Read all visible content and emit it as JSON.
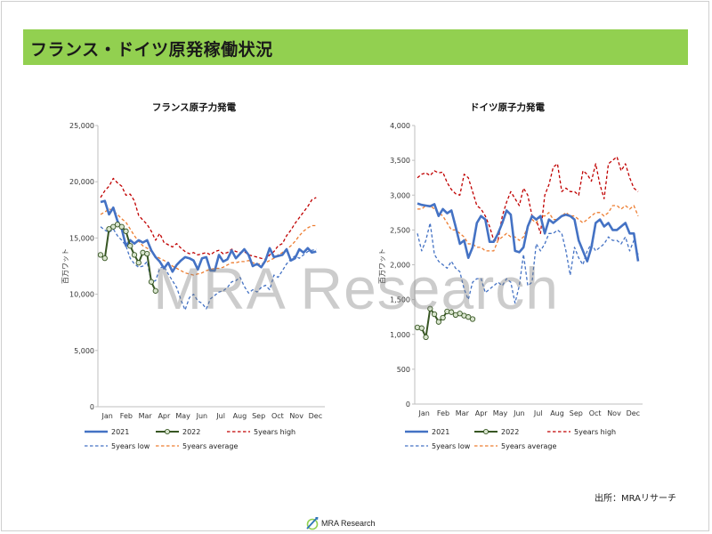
{
  "slide": {
    "title": "フランス・ドイツ原発稼働状況",
    "source": "出所：MRAリサーチ",
    "watermark": "MRA Research",
    "footer": "MRA Research",
    "colors": {
      "banner": "#92d050",
      "s2021": "#4472c4",
      "s2022": "#375623",
      "s2022_marker": "#d9e5cf",
      "high": "#c00000",
      "low": "#4472c4",
      "avg": "#ed7d31"
    }
  },
  "chart_data": [
    {
      "type": "line",
      "title": "フランス原子力発電",
      "ylabel": "百万ワット",
      "xlabel": "",
      "ylim": [
        0,
        25000
      ],
      "yticks": [
        0,
        5000,
        10000,
        15000,
        20000,
        25000
      ],
      "ytick_labels": [
        "0",
        "5,000",
        "10,000",
        "15,000",
        "20,000",
        "25,000"
      ],
      "month_labels": [
        "Jan",
        "Feb",
        "Mar",
        "Apr",
        "May",
        "Jun",
        "Jul",
        "Aug",
        "Sep",
        "Oct",
        "Nov",
        "Dec"
      ],
      "x_unit": "week",
      "grid": false,
      "legend_position": "bottom",
      "series": [
        {
          "name": "2021",
          "style": "solid-thick",
          "color": "#4472c4",
          "values": [
            18200,
            18300,
            17100,
            17700,
            16500,
            15800,
            14300,
            14800,
            14500,
            14800,
            14600,
            14800,
            13900,
            13300,
            12900,
            12300,
            12800,
            12000,
            12600,
            13000,
            13300,
            13200,
            13000,
            12200,
            13200,
            13300,
            12100,
            12100,
            13500,
            12900,
            13100,
            13900,
            13200,
            13600,
            14000,
            13500,
            12500,
            12700,
            12400,
            13000,
            14100,
            13300,
            13400,
            13500,
            14000,
            13000,
            13200,
            14000,
            13700,
            14100,
            13700,
            13800
          ]
        },
        {
          "name": "2022",
          "style": "solid-marker",
          "color": "#375623",
          "values": [
            13500,
            13200,
            15800,
            16000,
            16200,
            16000,
            15600,
            14300,
            13500,
            12800,
            13700,
            13600,
            11100,
            10300
          ]
        },
        {
          "name": "5years high",
          "style": "dash",
          "color": "#c00000",
          "values": [
            18600,
            19200,
            19600,
            20300,
            19900,
            19600,
            18800,
            18900,
            18300,
            17000,
            16600,
            16200,
            15600,
            14800,
            15400,
            14600,
            14400,
            14200,
            14500,
            14100,
            13800,
            13600,
            13700,
            13500,
            13600,
            13700,
            13500,
            13800,
            13900,
            13600,
            13700,
            14000,
            13800,
            13700,
            13800,
            13500,
            13400,
            13300,
            13200,
            13100,
            13500,
            13800,
            14300,
            14500,
            15200,
            15700,
            16300,
            16800,
            17300,
            17800,
            18400,
            18600
          ]
        },
        {
          "name": "5years low",
          "style": "dash",
          "color": "#4472c4",
          "values": [
            16000,
            15700,
            15500,
            15800,
            15200,
            14800,
            14300,
            13200,
            12700,
            12400,
            12500,
            12900,
            11100,
            11200,
            12300,
            12500,
            11800,
            11200,
            10600,
            9500,
            8600,
            9700,
            10000,
            9400,
            9200,
            8700,
            9600,
            9900,
            10200,
            10300,
            10600,
            11100,
            11200,
            11500,
            10700,
            10100,
            10400,
            10200,
            10600,
            10800,
            10400,
            11700,
            11500,
            12100,
            12700,
            13100,
            13400,
            13200,
            13500,
            13800,
            13900,
            14000
          ]
        },
        {
          "name": "5years average",
          "style": "dash",
          "color": "#ed7d31",
          "values": [
            17100,
            17300,
            17600,
            17400,
            17100,
            16700,
            16400,
            15800,
            15200,
            14700,
            14300,
            14100,
            13800,
            13400,
            13200,
            13000,
            12800,
            12500,
            12300,
            12100,
            11900,
            11800,
            11700,
            11800,
            11900,
            12100,
            12200,
            12300,
            12300,
            12400,
            12600,
            12800,
            12800,
            12900,
            12900,
            13000,
            12800,
            12700,
            12700,
            12800,
            13000,
            13200,
            13500,
            13700,
            14000,
            14300,
            14700,
            15200,
            15600,
            15900,
            16100,
            16100
          ]
        }
      ]
    },
    {
      "type": "line",
      "title": "ドイツ原子力発電",
      "ylabel": "百万ワット",
      "xlabel": "",
      "ylim": [
        0,
        4000
      ],
      "yticks": [
        0,
        500,
        1000,
        1500,
        2000,
        2500,
        3000,
        3500,
        4000
      ],
      "ytick_labels": [
        "0",
        "500",
        "1,000",
        "1,500",
        "2,000",
        "2,500",
        "3,000",
        "3,500",
        "4,000"
      ],
      "month_labels": [
        "Jan",
        "Feb",
        "Mar",
        "Apr",
        "May",
        "Jun",
        "Jul",
        "Aug",
        "Sep",
        "Oct",
        "Nov",
        "Dec"
      ],
      "x_unit": "week",
      "grid": false,
      "legend_position": "bottom",
      "series": [
        {
          "name": "2021",
          "style": "solid-thick",
          "color": "#4472c4",
          "values": [
            2880,
            2860,
            2850,
            2840,
            2870,
            2700,
            2800,
            2740,
            2780,
            2550,
            2300,
            2350,
            2100,
            2250,
            2600,
            2700,
            2650,
            2330,
            2330,
            2450,
            2600,
            2780,
            2720,
            2200,
            2180,
            2250,
            2550,
            2700,
            2650,
            2700,
            2450,
            2650,
            2600,
            2650,
            2700,
            2720,
            2700,
            2650,
            2350,
            2200,
            2050,
            2250,
            2600,
            2650,
            2550,
            2600,
            2500,
            2500,
            2550,
            2600,
            2450,
            2450,
            2050
          ]
        },
        {
          "name": "2022",
          "style": "solid-marker",
          "color": "#375623",
          "values": [
            1100,
            1090,
            960,
            1370,
            1290,
            1180,
            1240,
            1330,
            1320,
            1280,
            1300,
            1270,
            1250,
            1220
          ]
        },
        {
          "name": "5years high",
          "style": "dash",
          "color": "#c00000",
          "values": [
            3250,
            3300,
            3320,
            3280,
            3350,
            3320,
            3330,
            3180,
            3080,
            3020,
            3000,
            3300,
            3250,
            3050,
            2850,
            2800,
            2700,
            2550,
            2350,
            2350,
            2700,
            2900,
            3050,
            2950,
            2850,
            3100,
            3000,
            2700,
            2650,
            2450,
            3000,
            3150,
            3400,
            3450,
            3050,
            3100,
            3050,
            3050,
            3000,
            3350,
            3300,
            3200,
            3450,
            3150,
            2950,
            3450,
            3500,
            3550,
            3350,
            3450,
            3250,
            3100,
            3050
          ]
        },
        {
          "name": "5years low",
          "style": "dash",
          "color": "#4472c4",
          "values": [
            2450,
            2200,
            2350,
            2600,
            2150,
            2050,
            2000,
            1950,
            2050,
            1950,
            1900,
            1650,
            1500,
            1750,
            1800,
            1800,
            1600,
            1650,
            1700,
            1750,
            1700,
            1800,
            1750,
            1450,
            1700,
            2150,
            1700,
            1750,
            2300,
            2200,
            2300,
            2450,
            2450,
            2500,
            2450,
            2200,
            1850,
            2250,
            2100,
            2000,
            2200,
            2300,
            2200,
            2250,
            2300,
            2400,
            2350,
            2350,
            2300,
            2400,
            2200,
            2350,
            2150
          ]
        },
        {
          "name": "5years average",
          "style": "dash",
          "color": "#ed7d31",
          "values": [
            2800,
            2800,
            2850,
            2850,
            2800,
            2750,
            2700,
            2600,
            2500,
            2500,
            2450,
            2400,
            2300,
            2300,
            2250,
            2250,
            2200,
            2200,
            2200,
            2350,
            2400,
            2450,
            2400,
            2400,
            2350,
            2400,
            2550,
            2650,
            2600,
            2700,
            2700,
            2750,
            2650,
            2650,
            2700,
            2750,
            2700,
            2700,
            2650,
            2600,
            2650,
            2700,
            2750,
            2750,
            2700,
            2750,
            2850,
            2850,
            2800,
            2850,
            2800,
            2850,
            2700
          ]
        }
      ]
    }
  ]
}
